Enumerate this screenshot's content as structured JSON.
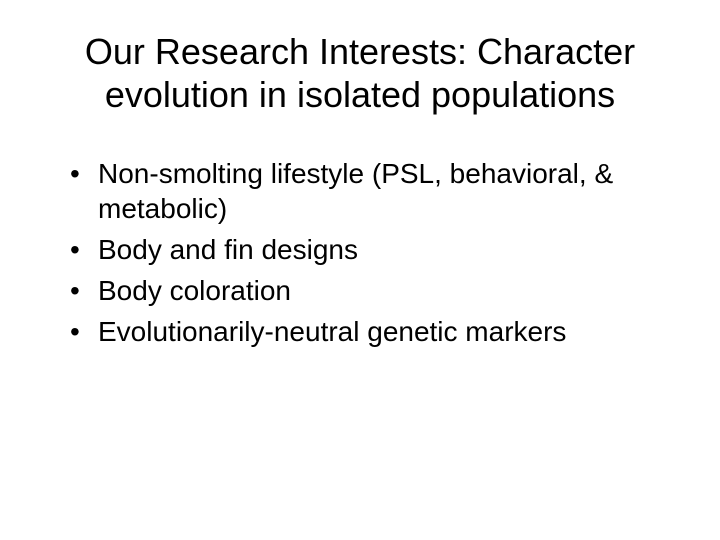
{
  "slide": {
    "title": "Our Research Interests: Character evolution in isolated populations",
    "title_fontsize": 36,
    "title_color": "#000000",
    "background_color": "#ffffff",
    "bullets": [
      "Non-smolting lifestyle (PSL, behavioral, & metabolic)",
      "Body and fin designs",
      "Body coloration",
      "Evolutionarily-neutral genetic markers"
    ],
    "bullet_fontsize": 28,
    "bullet_color": "#000000",
    "font_family": "Arial"
  }
}
